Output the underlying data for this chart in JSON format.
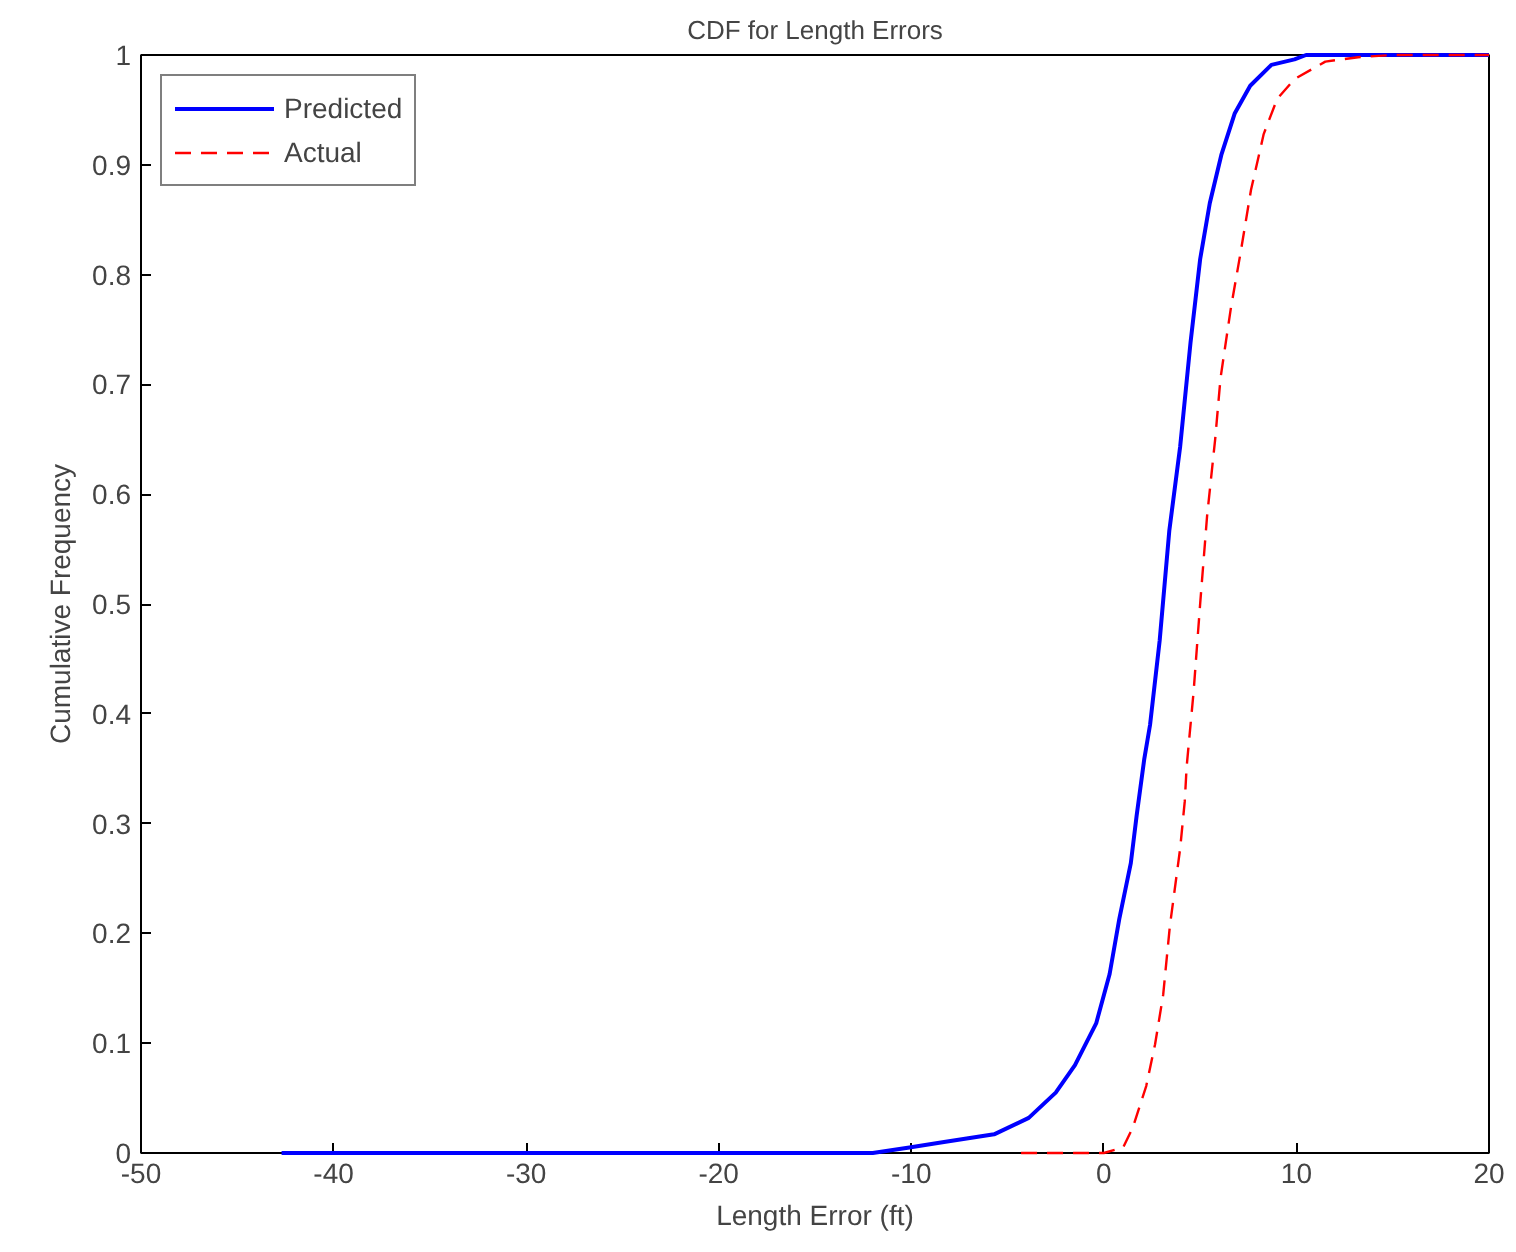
{
  "chart_data": {
    "type": "line",
    "title": "CDF for Length Errors",
    "xlabel": "Length Error (ft)",
    "ylabel": "Cumulative Frequency",
    "xlim": [
      -50,
      20
    ],
    "ylim": [
      0,
      1
    ],
    "xticks": [
      -50,
      -40,
      -30,
      -20,
      -10,
      0,
      10,
      20
    ],
    "yticks": [
      0,
      0.1,
      0.2,
      0.3,
      0.4,
      0.5,
      0.6,
      0.7,
      0.8,
      0.9,
      1
    ],
    "grid": false,
    "legend": "top left",
    "series": [
      {
        "name": "Predicted",
        "color": "#0000ff",
        "line_style": "solid",
        "x": [
          -42.7,
          -12,
          -10.1,
          -8.3,
          -5.7,
          -3.9,
          -2.5,
          -1.5,
          -0.4,
          0.3,
          0.8,
          1.4,
          1.7,
          2.1,
          2.4,
          2.9,
          3.4,
          3.96,
          4.5,
          5.0,
          5.5,
          6.1,
          6.8,
          7.6,
          8.7,
          9.9,
          10.5,
          20
        ],
        "values": [
          0,
          0,
          0.005,
          0.01,
          0.017,
          0.032,
          0.055,
          0.08,
          0.118,
          0.163,
          0.213,
          0.264,
          0.307,
          0.359,
          0.39,
          0.467,
          0.567,
          0.643,
          0.738,
          0.814,
          0.865,
          0.909,
          0.947,
          0.972,
          0.991,
          0.996,
          1,
          1
        ]
      },
      {
        "name": "Actual",
        "color": "#ff0000",
        "line_style": "dashed",
        "x": [
          -4.3,
          0,
          1.0,
          1.5,
          2.2,
          2.66,
          3.08,
          3.43,
          3.96,
          4.2,
          4.3,
          4.66,
          5.0,
          5.36,
          5.78,
          6.06,
          6.6,
          7.1,
          7.64,
          8.3,
          9.0,
          9.9,
          11.5,
          13.2,
          15,
          20
        ],
        "values": [
          0,
          0,
          0.005,
          0.023,
          0.061,
          0.099,
          0.144,
          0.207,
          0.277,
          0.32,
          0.352,
          0.42,
          0.5,
          0.58,
          0.65,
          0.706,
          0.77,
          0.82,
          0.877,
          0.928,
          0.96,
          0.978,
          0.994,
          0.998,
          1,
          1
        ]
      }
    ]
  }
}
